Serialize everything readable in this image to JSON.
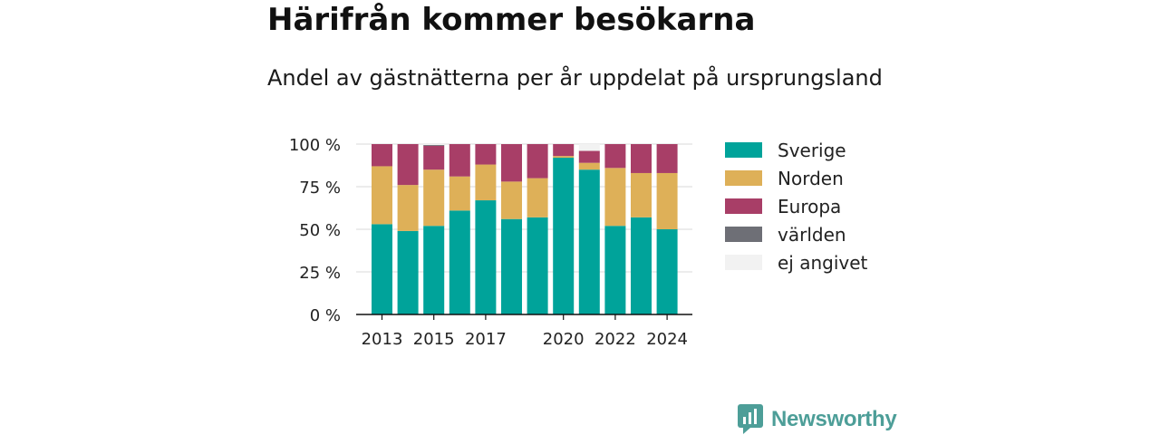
{
  "title": "Härifrån kommer besökarna",
  "subtitle": "Andel av gästnätterna per år uppdelat på ursprungsland",
  "brand": {
    "name": "Newsworthy",
    "color": "#4d9e98",
    "icon": "newsworthy-logo-icon"
  },
  "chart_data": {
    "type": "bar",
    "stacked": true,
    "categories": [
      "2013",
      "2014",
      "2015",
      "2016",
      "2017",
      "2018",
      "2019",
      "2020",
      "2021",
      "2022",
      "2023",
      "2024"
    ],
    "x_tick_labels": [
      "2013",
      "2015",
      "2017",
      "2020",
      "2022",
      "2024"
    ],
    "ylim": [
      0,
      100
    ],
    "y_ticks": [
      0,
      25,
      50,
      75,
      100
    ],
    "y_tick_labels": [
      "0 %",
      "25 %",
      "50 %",
      "75 %",
      "100 %"
    ],
    "grid": true,
    "legend_position": "right",
    "series": [
      {
        "name": "Sverige",
        "color": "#00a39a",
        "values": [
          53,
          49,
          52,
          61,
          67,
          56,
          57,
          92,
          85,
          52,
          57,
          50
        ]
      },
      {
        "name": "Norden",
        "color": "#deb058",
        "values": [
          34,
          27,
          33,
          20,
          21,
          22,
          23,
          1,
          4,
          34,
          26,
          33
        ]
      },
      {
        "name": "Europa",
        "color": "#a83e67",
        "values": [
          13,
          24,
          14,
          19,
          12,
          22,
          20,
          7,
          7,
          14,
          17,
          17
        ]
      },
      {
        "name": "världen",
        "color": "#6e6f76",
        "values": [
          0,
          0,
          0.5,
          0,
          0,
          0,
          0,
          0,
          0,
          0,
          0,
          0
        ]
      },
      {
        "name": "ej angivet",
        "color": "#f2f2f2",
        "values": [
          0,
          0,
          0.5,
          0,
          0,
          0.5,
          0,
          0,
          4,
          0,
          0,
          0
        ]
      }
    ]
  }
}
